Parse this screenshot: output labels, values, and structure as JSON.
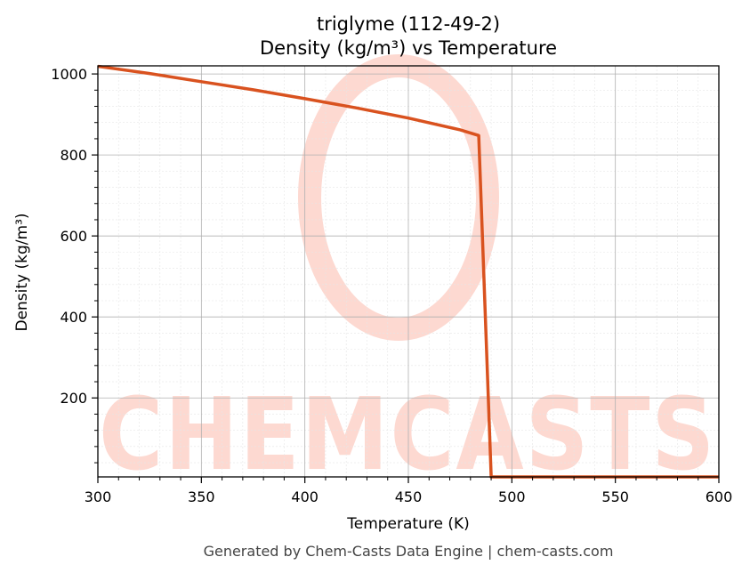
{
  "chart_data": {
    "type": "line",
    "title": "triglyme (112-49-2)",
    "subtitle": "Density (kg/m³) vs Temperature",
    "xlabel": "Temperature (K)",
    "ylabel": "Density (kg/m³)",
    "xlim": [
      300,
      600
    ],
    "ylim": [
      5,
      1020
    ],
    "x_ticks": [
      300,
      350,
      400,
      450,
      500,
      550,
      600
    ],
    "y_ticks": [
      200,
      400,
      600,
      800,
      1000
    ],
    "grid": true,
    "legend": "none",
    "line_color": "#d9521f",
    "series": [
      {
        "x": [
          300,
          325,
          350,
          375,
          400,
          425,
          450,
          475,
          484,
          490,
          500,
          550,
          600
        ],
        "y": [
          1019,
          1001,
          981,
          961,
          939,
          916,
          891,
          862,
          848,
          5,
          5,
          5,
          5
        ]
      }
    ]
  },
  "watermark": {
    "text": "CHEMCASTS",
    "color": "#fdd9d1"
  },
  "footer": "Generated by Chem-Casts Data Engine | chem-casts.com"
}
